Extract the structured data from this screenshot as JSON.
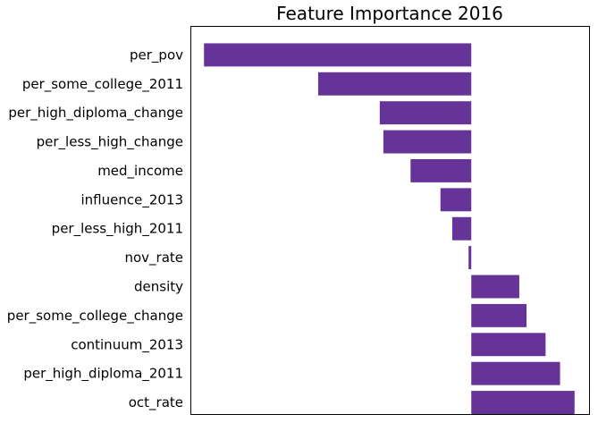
{
  "chart_data": {
    "type": "bar",
    "orientation": "horizontal",
    "title": "Feature Importance 2016",
    "xlabel": "",
    "ylabel": "",
    "x_ticks_shown": false,
    "grid": false,
    "xlim": [
      -0.31,
      0.13
    ],
    "bar_color": "#663399",
    "categories": [
      "per_pov",
      "per_some_college_2011",
      "per_high_diploma_change",
      "per_less_high_change",
      "med_income",
      "influence_2013",
      "per_less_high_2011",
      "nov_rate",
      "density",
      "per_some_college_change",
      "continuum_2013",
      "per_high_diploma_2011",
      "oct_rate"
    ],
    "values": [
      -0.295,
      -0.169,
      -0.101,
      -0.097,
      -0.067,
      -0.034,
      -0.021,
      -0.003,
      0.053,
      0.061,
      0.082,
      0.098,
      0.114
    ]
  }
}
